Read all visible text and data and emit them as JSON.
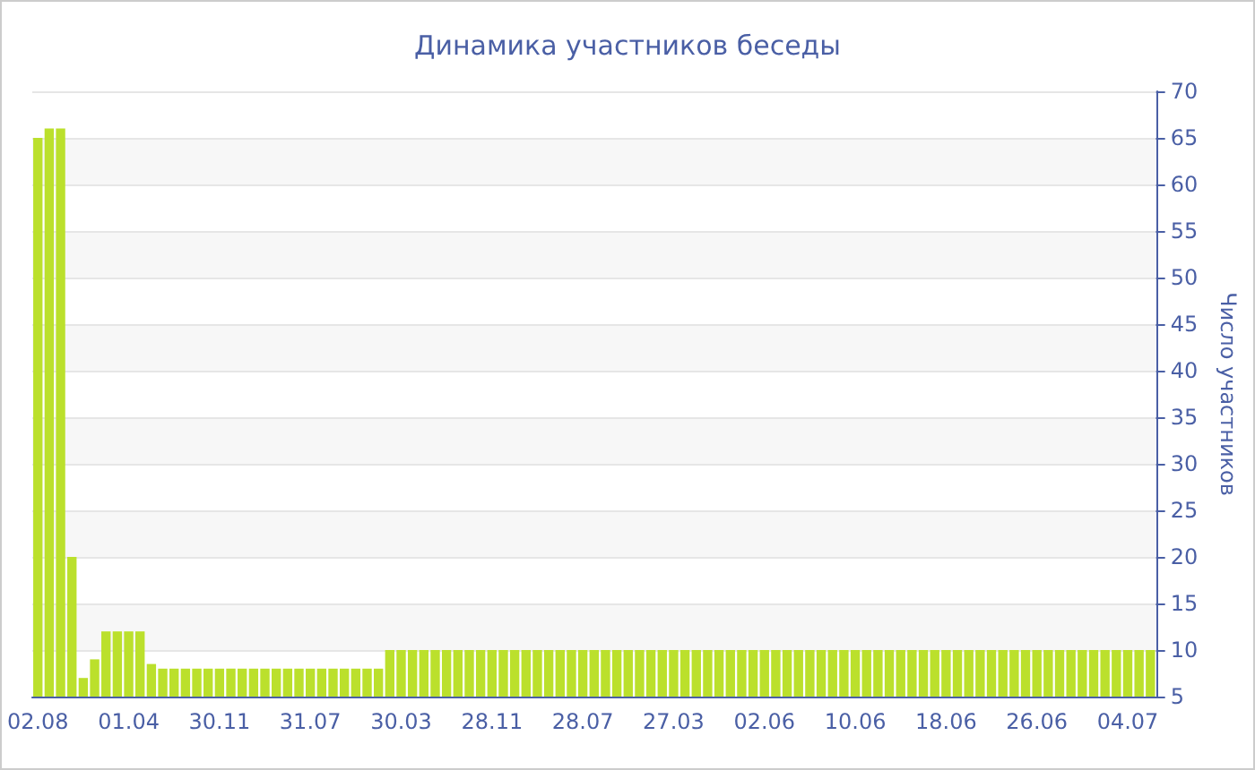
{
  "chart_data": {
    "type": "bar",
    "title": "Динамика участников беседы",
    "ylabel": "Число участников",
    "categories": [
      "02.08",
      null,
      null,
      null,
      null,
      null,
      null,
      null,
      "01.04",
      null,
      null,
      null,
      null,
      null,
      null,
      null,
      "30.11",
      null,
      null,
      null,
      null,
      null,
      null,
      null,
      "31.07",
      null,
      null,
      null,
      null,
      null,
      null,
      null,
      "30.03",
      null,
      null,
      null,
      null,
      null,
      null,
      null,
      "28.11",
      null,
      null,
      null,
      null,
      null,
      null,
      null,
      "28.07",
      null,
      null,
      null,
      null,
      null,
      null,
      null,
      "27.03",
      null,
      null,
      null,
      null,
      null,
      null,
      null,
      "02.06",
      null,
      null,
      null,
      null,
      null,
      null,
      null,
      "10.06",
      null,
      null,
      null,
      null,
      null,
      null,
      null,
      "18.06",
      null,
      null,
      null,
      null,
      null,
      null,
      null,
      "26.06",
      null,
      null,
      null,
      null,
      null,
      null,
      null,
      "04.07",
      null,
      null
    ],
    "values": [
      65,
      66,
      66,
      20,
      7,
      9,
      12,
      12,
      12,
      12,
      8.5,
      8,
      8,
      8,
      8,
      8,
      8,
      8,
      8,
      8,
      8,
      8,
      8,
      8,
      8,
      8,
      8,
      8,
      8,
      8,
      8,
      10,
      10,
      10,
      10,
      10,
      10,
      10,
      10,
      10,
      10,
      10,
      10,
      10,
      10,
      10,
      10,
      10,
      10,
      10,
      10,
      10,
      10,
      10,
      10,
      10,
      10,
      10,
      10,
      10,
      10,
      10,
      10,
      10,
      10,
      10,
      10,
      10,
      10,
      10,
      10,
      10,
      10,
      10,
      10,
      10,
      10,
      10,
      10,
      10,
      10,
      10,
      10,
      10,
      10,
      10,
      10,
      10,
      10,
      10,
      10,
      10,
      10,
      10,
      10,
      10,
      10,
      10,
      10
    ],
    "color": "#bbe02c",
    "ylim": [
      5,
      70
    ],
    "yticks": [
      5,
      10,
      15,
      20,
      25,
      30,
      35,
      40,
      45,
      50,
      55,
      60,
      65,
      70
    ],
    "grid": "y"
  }
}
